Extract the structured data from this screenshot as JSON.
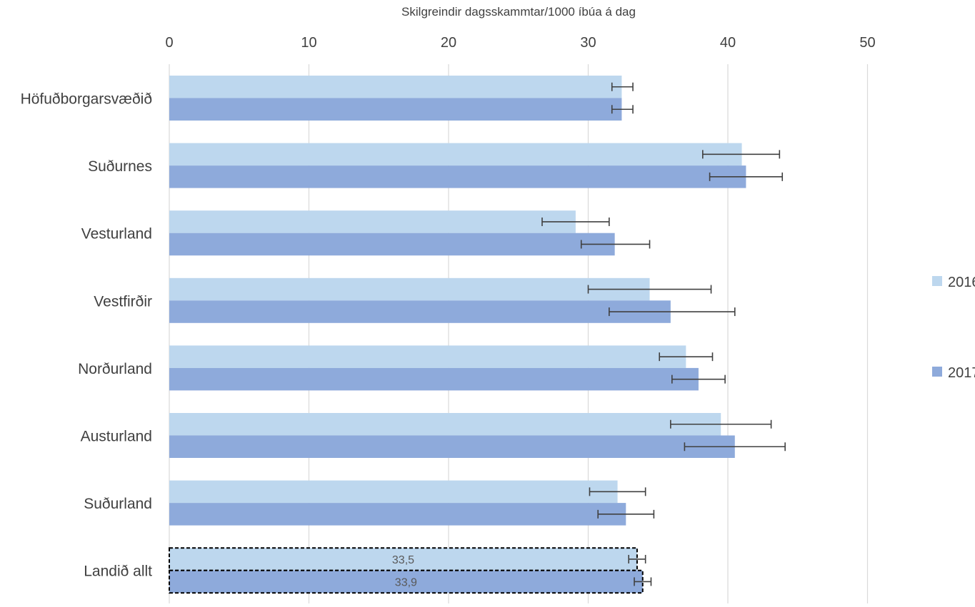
{
  "chart_data": {
    "type": "bar",
    "orientation": "horizontal",
    "title": "Skilgreindir dagsskammtar/1000 íbúa á dag",
    "xlabel": "Skilgreindir dagsskammtar/1000 íbúa á dag",
    "ylabel": "",
    "xlim": [
      0,
      50
    ],
    "x_ticks": [
      0,
      10,
      20,
      30,
      40,
      50
    ],
    "grid": "vertical",
    "legend_position": "right",
    "categories": [
      "Höfuðborgarsvæðið",
      "Suðurnes",
      "Vesturland",
      "Vestfirðir",
      "Norðurland",
      "Austurland",
      "Suðurland",
      "Landið allt"
    ],
    "series": [
      {
        "name": "2016",
        "color": "#bdd7ee",
        "values": [
          32.4,
          41.0,
          29.1,
          34.4,
          37.0,
          39.5,
          32.1,
          33.5
        ],
        "error_low": [
          31.7,
          38.2,
          26.7,
          30.0,
          35.1,
          35.9,
          30.1,
          32.9
        ],
        "error_high": [
          33.2,
          43.7,
          31.5,
          38.8,
          38.9,
          43.1,
          34.1,
          34.1
        ]
      },
      {
        "name": "2017",
        "color": "#8eaadb",
        "values": [
          32.4,
          41.3,
          31.9,
          35.9,
          37.9,
          40.5,
          32.7,
          33.9
        ],
        "error_low": [
          31.7,
          38.7,
          29.5,
          31.5,
          36.0,
          36.9,
          30.7,
          33.3
        ],
        "error_high": [
          33.2,
          43.9,
          34.4,
          40.5,
          39.8,
          44.1,
          34.7,
          34.5
        ]
      }
    ],
    "data_labels": [
      {
        "category": "Landið allt",
        "series": "2016",
        "text": "33,5"
      },
      {
        "category": "Landið allt",
        "series": "2017",
        "text": "33,9"
      }
    ],
    "highlighted_category": "Landið allt"
  }
}
